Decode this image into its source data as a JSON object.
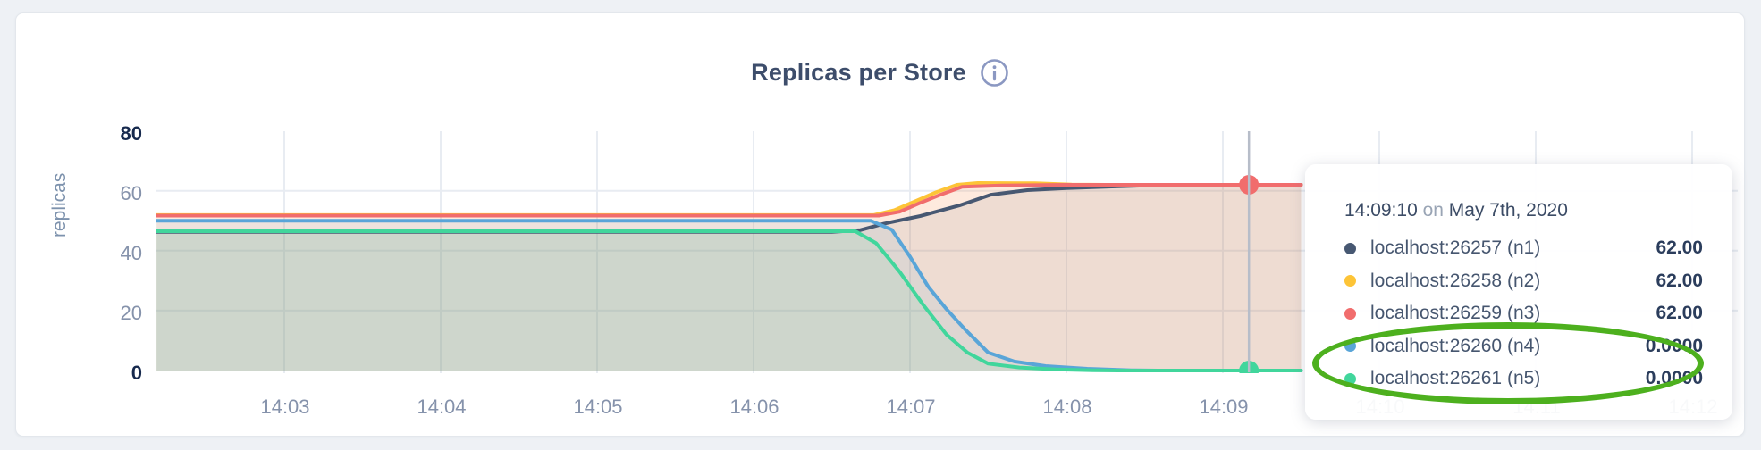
{
  "card": {
    "title": "Replicas per Store",
    "info_icon": "info-icon"
  },
  "chart_data": {
    "type": "area",
    "title": "Replicas per Store",
    "xlabel": "",
    "ylabel": "replicas",
    "ylim": [
      0,
      80
    ],
    "grid": true,
    "legend_position": "tooltip",
    "x_unit": "seconds after 14:02:00 on May 7th, 2020",
    "x_ticks": [
      {
        "label": "14:03",
        "t": 60
      },
      {
        "label": "14:04",
        "t": 120
      },
      {
        "label": "14:05",
        "t": 180
      },
      {
        "label": "14:06",
        "t": 240
      },
      {
        "label": "14:07",
        "t": 300
      },
      {
        "label": "14:08",
        "t": 360
      },
      {
        "label": "14:09",
        "t": 420
      },
      {
        "label": "14:10",
        "t": 480
      },
      {
        "label": "14:11",
        "t": 540
      },
      {
        "label": "14:12",
        "t": 600
      }
    ],
    "y_ticks": [
      {
        "label": "80",
        "v": 80,
        "strong": true
      },
      {
        "label": "60",
        "v": 60,
        "strong": false
      },
      {
        "label": "40",
        "v": 40,
        "strong": false
      },
      {
        "label": "20",
        "v": 20,
        "strong": false
      },
      {
        "label": "0",
        "v": 0,
        "strong": true
      }
    ],
    "series": [
      {
        "name": "localhost:26257 (n1)",
        "color": "#475872",
        "points": [
          [
            11,
            46.3
          ],
          [
            270,
            46.3
          ],
          [
            281,
            46.9
          ],
          [
            290,
            49
          ],
          [
            304,
            51.6
          ],
          [
            319,
            55.1
          ],
          [
            331,
            58.7
          ],
          [
            345,
            60.2
          ],
          [
            360,
            60.9
          ],
          [
            380,
            61.5
          ],
          [
            400,
            62
          ],
          [
            450,
            62
          ]
        ]
      },
      {
        "name": "localhost:26258 (n2)",
        "color": "#fdc437",
        "points": [
          [
            11,
            51.9
          ],
          [
            286,
            51.9
          ],
          [
            294,
            53.5
          ],
          [
            302,
            56.5
          ],
          [
            310,
            59.5
          ],
          [
            318,
            62
          ],
          [
            326,
            62.6
          ],
          [
            348,
            62.5
          ],
          [
            362,
            62.1
          ],
          [
            375,
            62
          ],
          [
            450,
            62
          ]
        ]
      },
      {
        "name": "localhost:26259 (n3)",
        "color": "#f16d6d",
        "points": [
          [
            11,
            51.7
          ],
          [
            288,
            51.7
          ],
          [
            296,
            53
          ],
          [
            304,
            56
          ],
          [
            312,
            58.8
          ],
          [
            320,
            61.3
          ],
          [
            335,
            61.8
          ],
          [
            360,
            62
          ],
          [
            450,
            62
          ]
        ]
      },
      {
        "name": "localhost:26260 (n4)",
        "color": "#59a5d8",
        "points": [
          [
            11,
            50
          ],
          [
            285,
            50
          ],
          [
            293,
            47
          ],
          [
            300,
            38
          ],
          [
            307,
            28
          ],
          [
            314,
            20.5
          ],
          [
            321,
            13.8
          ],
          [
            330,
            6
          ],
          [
            340,
            3
          ],
          [
            352,
            1.5
          ],
          [
            368,
            0.6
          ],
          [
            385,
            0.1
          ],
          [
            395,
            0
          ],
          [
            450,
            0
          ]
        ]
      },
      {
        "name": "localhost:26261 (n5)",
        "color": "#41d69c",
        "points": [
          [
            11,
            46.5
          ],
          [
            279,
            46.5
          ],
          [
            287,
            42.5
          ],
          [
            296,
            33
          ],
          [
            305,
            22
          ],
          [
            314,
            12
          ],
          [
            322,
            6
          ],
          [
            330,
            2.3
          ],
          [
            342,
            1
          ],
          [
            356,
            0.4
          ],
          [
            370,
            0.1
          ],
          [
            380,
            0
          ],
          [
            450,
            0
          ]
        ]
      }
    ],
    "hover": {
      "t": 430,
      "line_color": "#b7bdc9",
      "markers": [
        {
          "series_index": 2,
          "value": 62,
          "color": "#f16d6d"
        },
        {
          "series_index": 4,
          "value": 0,
          "color": "#41d69c"
        }
      ]
    },
    "style": {
      "grid_color": "#e8ecf2",
      "fill_opacity": 0.1,
      "line_width": 4
    }
  },
  "tooltip": {
    "time": "14:09:10",
    "on_word": "on",
    "date": "May 7th, 2020",
    "rows": [
      {
        "color": "#475872",
        "label": "localhost:26257 (n1)",
        "value": "62.00"
      },
      {
        "color": "#fdc437",
        "label": "localhost:26258 (n2)",
        "value": "62.00"
      },
      {
        "color": "#f16d6d",
        "label": "localhost:26259 (n3)",
        "value": "62.00"
      },
      {
        "color": "#59a5d8",
        "label": "localhost:26260 (n4)",
        "value": "0.0000"
      },
      {
        "color": "#41d69c",
        "label": "localhost:26261 (n5)",
        "value": "0.0000"
      }
    ],
    "annotation_color": "#4db01e"
  }
}
